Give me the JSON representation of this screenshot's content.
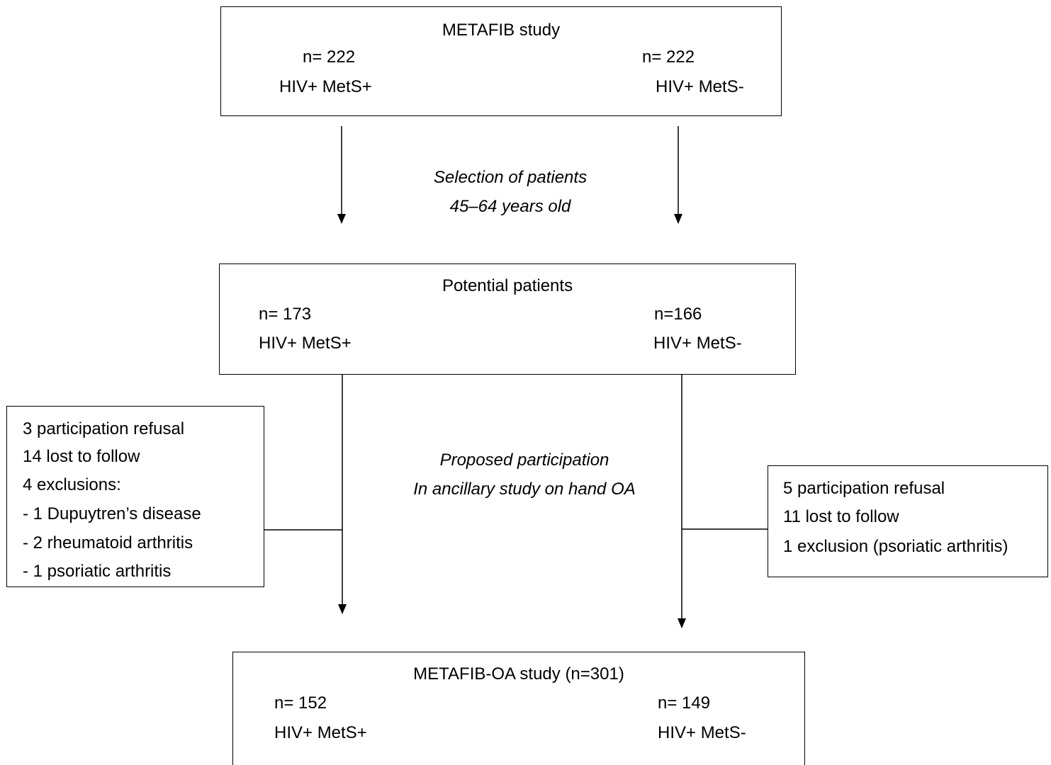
{
  "box1": {
    "title": "METAFIB study",
    "left_n": "n= 222",
    "left_group": "HIV+ MetS+",
    "right_n": "n= 222",
    "right_group": "HIV+ MetS-"
  },
  "step1": {
    "line1": "Selection of patients",
    "line2": "45–64 years old"
  },
  "box2": {
    "title": "Potential patients",
    "left_n": "n= 173",
    "left_group": "HIV+ MetS+",
    "right_n": "n=166",
    "right_group": "HIV+ MetS-"
  },
  "step2": {
    "line1": "Proposed participation",
    "line2": "In ancillary study on hand OA"
  },
  "left_exclusions": [
    "3 participation refusal",
    "14 lost to follow",
    "4 exclusions:",
    "- 1 Dupuytren’s disease",
    "- 2 rheumatoid arthritis",
    "- 1 psoriatic arthritis"
  ],
  "right_exclusions": [
    "5 participation refusal",
    "11 lost to follow",
    "1 exclusion (psoriatic arthritis)"
  ],
  "box3": {
    "title": "METAFIB-OA study (n=301)",
    "left_n": "n= 152",
    "left_group": "HIV+ MetS+",
    "right_n": "n= 149",
    "right_group": "HIV+ MetS-"
  }
}
